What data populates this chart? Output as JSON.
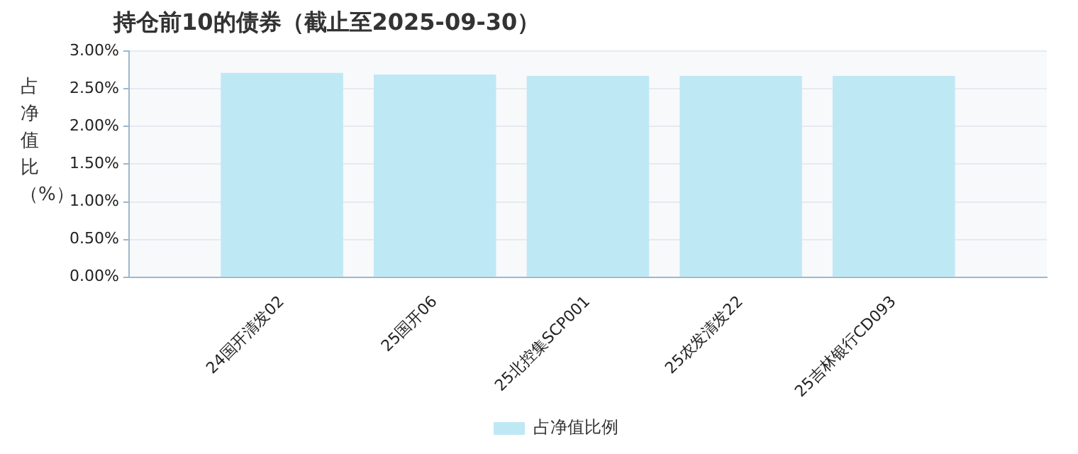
{
  "chart_data": {
    "type": "bar",
    "title": "持仓前10的债券（截止至2025-09-30）",
    "ylabel": "占净值比（%）",
    "categories": [
      "24国开清发02",
      "25国开06",
      "25北控集SCP001",
      "25农发清发22",
      "25吉林银行CD093"
    ],
    "series": [
      {
        "name": "占净值比例",
        "color": "#bfe8f5",
        "values": [
          2.71,
          2.69,
          2.67,
          2.67,
          2.67
        ]
      }
    ],
    "ylim": [
      0,
      3
    ],
    "yticks": [
      {
        "value": 0,
        "label": "0.00%"
      },
      {
        "value": 0.5,
        "label": "0.50%"
      },
      {
        "value": 1,
        "label": "1.00%"
      },
      {
        "value": 1.5,
        "label": "1.50%"
      },
      {
        "value": 2,
        "label": "2.00%"
      },
      {
        "value": 2.5,
        "label": "2.50%"
      },
      {
        "value": 3,
        "label": "3.00%"
      }
    ],
    "grid": "y",
    "legend": "bottom"
  }
}
